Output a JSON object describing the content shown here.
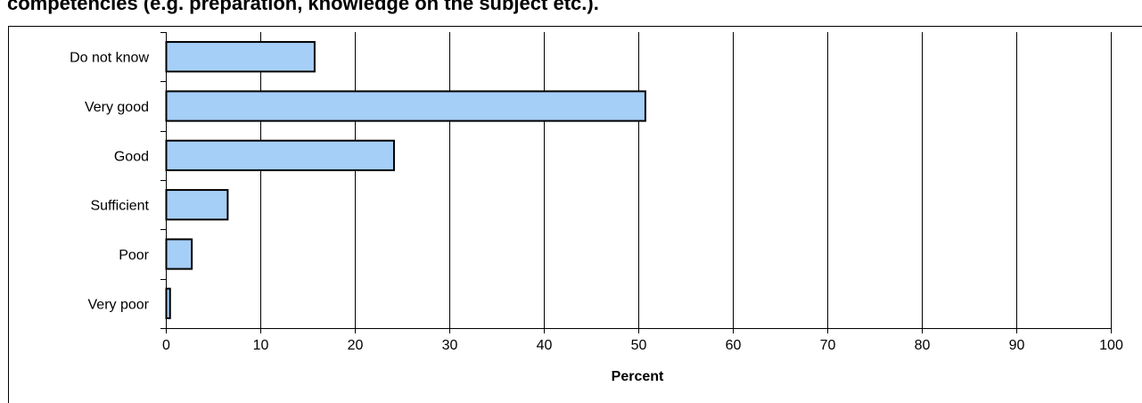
{
  "chart_data": {
    "type": "bar",
    "orientation": "horizontal",
    "title": "competencies (e.g. preparation, knowledge on the subject etc.).",
    "xlabel": "Percent",
    "ylabel": "",
    "categories": [
      "Do not know",
      "Very good",
      "Good",
      "Sufficient",
      "Poor",
      "Very poor"
    ],
    "values": [
      15.7,
      50.7,
      24.1,
      6.5,
      2.7,
      0.4
    ],
    "xlim": [
      0,
      100
    ],
    "x_ticks": [
      "0",
      "10",
      "20",
      "30",
      "40",
      "50",
      "60",
      "70",
      "80",
      "90",
      "100"
    ],
    "grid": "vertical",
    "bar_color": "#a6cff7",
    "bar_edge_color": "#000000"
  }
}
